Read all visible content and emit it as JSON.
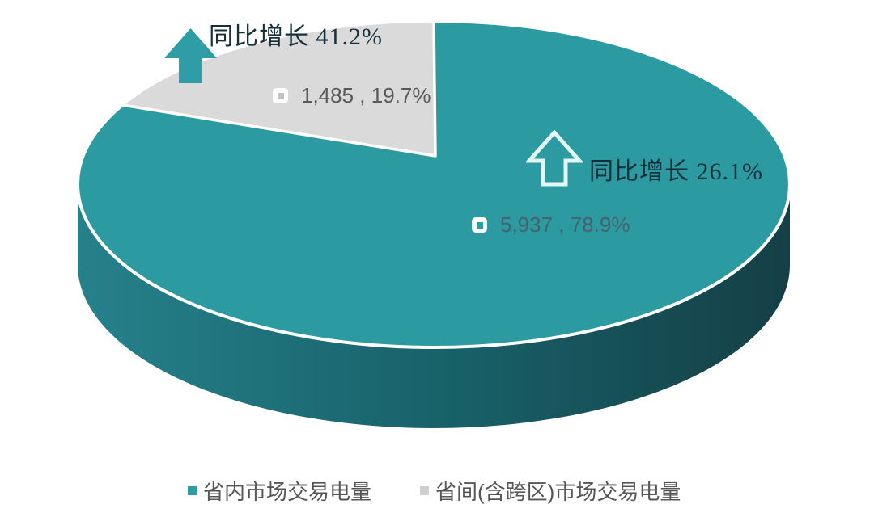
{
  "chart_data": {
    "type": "pie",
    "style": "3d",
    "legend_position": "bottom",
    "slices": [
      {
        "name": "省内市场交易电量",
        "value": 5937,
        "percent": 78.9,
        "data_label": "5,937 , 78.9%",
        "annotation": "同比增长 26.1%",
        "color": "#2C9AA1"
      },
      {
        "name": "省间(含跨区)市场交易电量",
        "value": 1485,
        "percent": 19.7,
        "data_label": "1,485 , 19.7%",
        "annotation": "同比增长 41.2%",
        "color": "#DADADA"
      }
    ]
  },
  "legend": {
    "items": [
      {
        "label": "省内市场交易电量",
        "color": "#2E9DA5"
      },
      {
        "label": "省间(含跨区)市场交易电量",
        "color": "#CFCFCF"
      }
    ]
  },
  "colors": {
    "teal_top": "#2C9AA1",
    "gray_slice": "#DADADA",
    "rim_gradient": [
      "#26818B",
      "#186169",
      "#153F46"
    ],
    "arrow_filled": "#2E9DA5",
    "arrow_outline": "#E3F7F6",
    "label_key_teal": "#2E9DA5",
    "label_key_gray": "#C3C3C3",
    "slice_border": "#FFFFFF"
  }
}
